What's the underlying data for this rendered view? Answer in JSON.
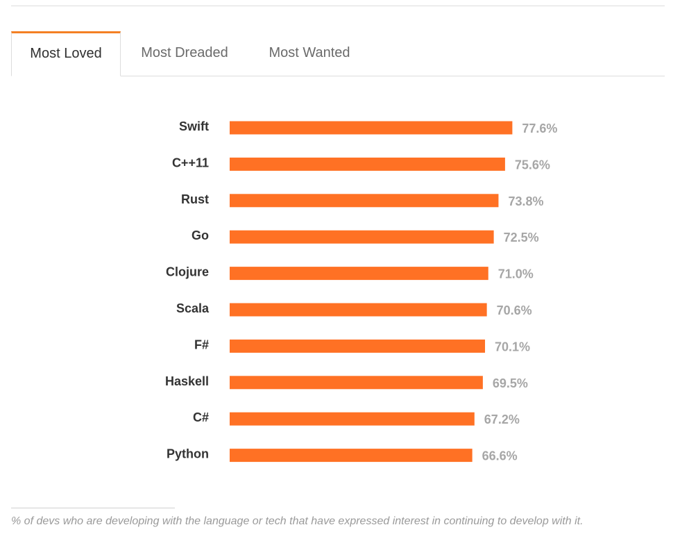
{
  "tabs": [
    {
      "label": "Most Loved",
      "active": true
    },
    {
      "label": "Most Dreaded",
      "active": false
    },
    {
      "label": "Most Wanted",
      "active": false
    }
  ],
  "colors": {
    "accent": "#f48024",
    "bar": "#ff7124",
    "value_label": "#a6a6a6"
  },
  "chart_data": {
    "type": "bar",
    "orientation": "horizontal",
    "categories": [
      "Swift",
      "C++11",
      "Rust",
      "Go",
      "Clojure",
      "Scala",
      "F#",
      "Haskell",
      "C#",
      "Python"
    ],
    "values": [
      77.6,
      75.6,
      73.8,
      72.5,
      71.0,
      70.6,
      70.1,
      69.5,
      67.2,
      66.6
    ],
    "value_labels": [
      "77.6%",
      "75.6%",
      "73.8%",
      "72.5%",
      "71.0%",
      "70.6%",
      "70.1%",
      "69.5%",
      "67.2%",
      "66.6%"
    ],
    "title": "",
    "xlabel": "",
    "ylabel": "",
    "grid": false,
    "legend": "none"
  },
  "footnote": "% of devs who are developing with the language or tech that have expressed interest in continuing to develop with it."
}
